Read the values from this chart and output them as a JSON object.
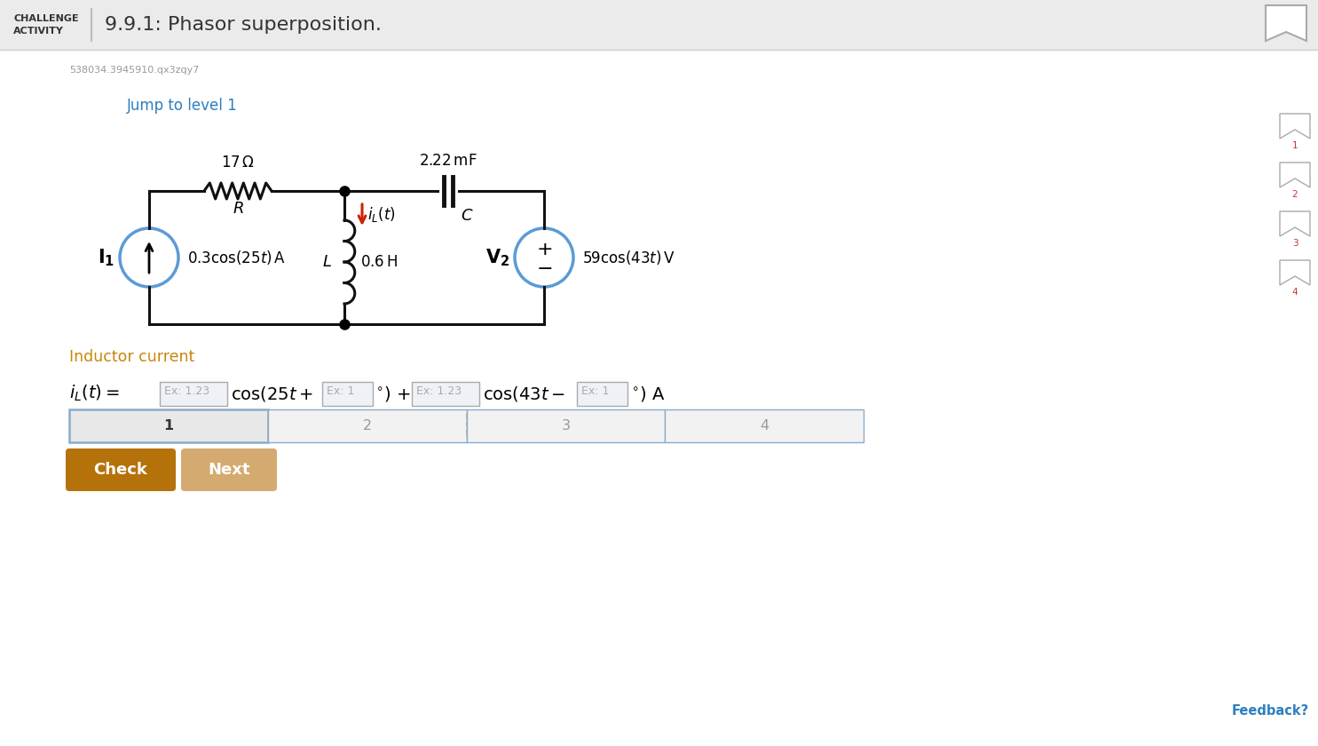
{
  "bg_color": "#f5f5f5",
  "white": "#ffffff",
  "header_bg": "#ebebeb",
  "header_border": "#cccccc",
  "title_text": "9.9.1: Phasor superposition.",
  "session_id": "538034.3945910.qx3zqy7",
  "jump_text": "Jump to level 1",
  "jump_color": "#2d7fc1",
  "inductor_label": "Inductor current",
  "inductor_color": "#c8860a",
  "check_btn_color": "#b5720a",
  "next_btn_color": "#d4aa70",
  "check_text": "Check",
  "next_text": "Next",
  "tab_border_color": "#8aabcc",
  "tab_active_color": "#e8e8e8",
  "tab_inactive_color": "#f2f2f2",
  "tab_labels": [
    "1",
    "2",
    "3",
    "4"
  ],
  "sidebar_nums": [
    "1",
    "2",
    "3",
    "4"
  ],
  "sidebar_num_color": "#cc3333",
  "feedback_color": "#2d7fc1",
  "wire_color": "#111111",
  "source_circle_color": "#5b9bd5"
}
